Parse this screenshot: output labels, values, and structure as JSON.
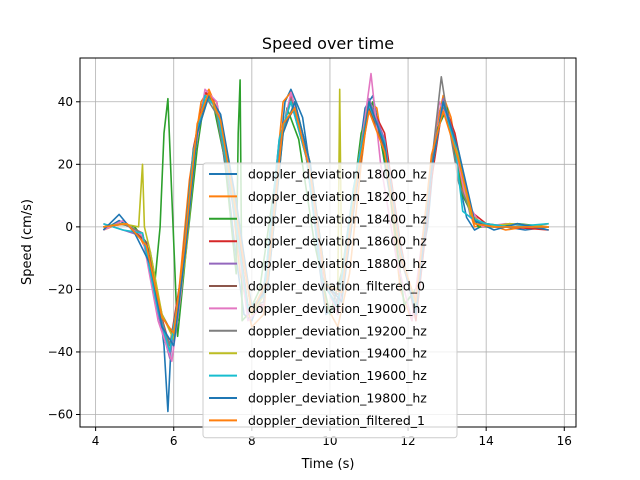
{
  "chart_data": {
    "type": "line",
    "title": "Speed over time",
    "xlabel": "Time (s)",
    "ylabel": "Speed (cm/s)",
    "xlim": [
      3.6,
      16.3
    ],
    "ylim": [
      -64,
      54
    ],
    "xticks": [
      4,
      6,
      8,
      10,
      12,
      14,
      16
    ],
    "yticks": [
      -60,
      -40,
      -20,
      0,
      20,
      40
    ],
    "xtick_labels": [
      "4",
      "6",
      "8",
      "10",
      "12",
      "14",
      "16"
    ],
    "ytick_labels": [
      "−60",
      "−40",
      "−20",
      "0",
      "20",
      "40"
    ],
    "grid": true,
    "legend_position": "center",
    "series": [
      {
        "name": "doppler_deviation_18000_hz",
        "color": "#1f77b4",
        "x": [
          4.2,
          4.6,
          5.0,
          5.4,
          5.6,
          5.75,
          5.85,
          5.95,
          6.1,
          6.3,
          6.5,
          6.7,
          6.85,
          7.0,
          7.2,
          7.4,
          7.6,
          7.8,
          8.0,
          8.3,
          8.6,
          8.85,
          9.0,
          9.3,
          9.5,
          9.7,
          9.9,
          10.1,
          10.3,
          10.6,
          10.9,
          11.1,
          11.3,
          11.6,
          11.9,
          12.2,
          12.5,
          12.75,
          12.9,
          13.1,
          13.3,
          13.5,
          13.7,
          14.0,
          14.5,
          15.0,
          15.6
        ],
        "y": [
          -1,
          2,
          -1,
          -8,
          -22,
          -38,
          -59,
          -33,
          -30,
          -5,
          20,
          38,
          43,
          40,
          30,
          12,
          -10,
          -28,
          -30,
          -20,
          10,
          40,
          44,
          35,
          18,
          -10,
          -28,
          -26,
          -20,
          10,
          38,
          42,
          28,
          5,
          -25,
          -20,
          0,
          35,
          40,
          30,
          15,
          3,
          -1,
          1,
          0,
          -1,
          0
        ]
      },
      {
        "name": "doppler_deviation_18200_hz",
        "color": "#ff7f0e",
        "x": [
          4.2,
          4.6,
          5.0,
          5.4,
          5.7,
          5.9,
          6.1,
          6.4,
          6.7,
          6.9,
          7.1,
          7.4,
          7.7,
          8.0,
          8.3,
          8.6,
          8.8,
          9.0,
          9.3,
          9.6,
          9.9,
          10.2,
          10.5,
          10.8,
          11.0,
          11.2,
          11.5,
          11.8,
          12.1,
          12.4,
          12.7,
          12.9,
          13.1,
          13.4,
          13.7,
          14.0,
          14.5,
          15.0,
          15.6
        ],
        "y": [
          -1,
          1,
          0,
          -10,
          -30,
          -40,
          -25,
          15,
          40,
          44,
          38,
          20,
          -15,
          -32,
          -28,
          15,
          40,
          43,
          30,
          5,
          -25,
          -32,
          -15,
          20,
          40,
          38,
          15,
          -20,
          -30,
          -5,
          30,
          42,
          35,
          12,
          0,
          1,
          -1,
          0,
          1
        ]
      },
      {
        "name": "doppler_deviation_18400_hz",
        "color": "#2ca02c",
        "x": [
          4.2,
          4.6,
          5.0,
          5.3,
          5.5,
          5.65,
          5.75,
          5.85,
          5.95,
          6.1,
          6.3,
          6.6,
          6.8,
          7.0,
          7.3,
          7.6,
          7.65,
          7.7,
          7.75,
          7.9,
          8.2,
          8.6,
          8.9,
          9.2,
          9.6,
          10.0,
          10.4,
          10.8,
          11.1,
          11.5,
          11.9,
          12.3,
          12.7,
          13.0,
          13.4,
          13.8,
          14.2,
          14.8,
          15.6
        ],
        "y": [
          0,
          1,
          0,
          -5,
          -20,
          0,
          30,
          41,
          10,
          -35,
          -10,
          25,
          42,
          40,
          22,
          -15,
          30,
          47,
          -30,
          -28,
          -20,
          15,
          38,
          28,
          -5,
          -28,
          -10,
          30,
          40,
          15,
          -25,
          -18,
          30,
          38,
          10,
          0,
          0,
          1,
          0
        ]
      },
      {
        "name": "doppler_deviation_18600_hz",
        "color": "#d62728",
        "x": [
          4.2,
          4.7,
          5.2,
          5.6,
          5.9,
          6.2,
          6.5,
          6.8,
          7.1,
          7.5,
          7.9,
          8.3,
          8.7,
          9.0,
          9.4,
          9.8,
          10.2,
          10.6,
          11.0,
          11.4,
          11.8,
          12.2,
          12.6,
          12.9,
          13.2,
          13.6,
          14.0,
          14.6,
          15.6
        ],
        "y": [
          0,
          1,
          -2,
          -25,
          -38,
          -15,
          25,
          43,
          40,
          12,
          -25,
          -25,
          25,
          42,
          25,
          -15,
          -28,
          5,
          40,
          30,
          -5,
          -30,
          15,
          40,
          30,
          5,
          1,
          0,
          -1
        ]
      },
      {
        "name": "doppler_deviation_18800_hz",
        "color": "#9467bd",
        "x": [
          4.2,
          4.7,
          5.2,
          5.6,
          5.9,
          6.2,
          6.5,
          6.8,
          7.1,
          7.5,
          7.9,
          8.3,
          8.7,
          9.0,
          9.4,
          9.8,
          10.2,
          10.6,
          11.0,
          11.4,
          11.8,
          12.2,
          12.6,
          12.9,
          13.2,
          13.6,
          14.0,
          14.6,
          15.6
        ],
        "y": [
          1,
          -1,
          -3,
          -28,
          -42,
          -18,
          22,
          42,
          38,
          10,
          -28,
          -22,
          28,
          40,
          22,
          -18,
          -25,
          8,
          41,
          28,
          -8,
          -28,
          18,
          41,
          28,
          3,
          0,
          1,
          0
        ]
      },
      {
        "name": "doppler_deviation_filtered_0",
        "color": "#8c564b",
        "x": [
          4.2,
          4.8,
          5.3,
          5.7,
          6.0,
          6.3,
          6.6,
          6.9,
          7.2,
          7.6,
          8.0,
          8.4,
          8.8,
          9.1,
          9.5,
          9.9,
          10.3,
          10.7,
          11.0,
          11.4,
          11.8,
          12.2,
          12.6,
          12.9,
          13.3,
          13.7,
          14.2,
          14.8,
          15.6
        ],
        "y": [
          0,
          1,
          -5,
          -28,
          -35,
          -5,
          32,
          42,
          35,
          5,
          -28,
          -18,
          32,
          38,
          18,
          -20,
          -22,
          15,
          38,
          25,
          -10,
          -25,
          22,
          38,
          22,
          1,
          0,
          0,
          0
        ]
      },
      {
        "name": "doppler_deviation_19000_hz",
        "color": "#e377c2",
        "x": [
          4.2,
          4.7,
          5.2,
          5.6,
          5.95,
          6.2,
          6.5,
          6.8,
          7.1,
          7.5,
          7.9,
          8.3,
          8.7,
          9.0,
          9.4,
          9.8,
          10.2,
          10.6,
          10.9,
          11.05,
          11.3,
          11.7,
          12.1,
          12.5,
          12.8,
          13.1,
          13.5,
          13.9,
          14.5,
          15.6
        ],
        "y": [
          -1,
          2,
          -3,
          -30,
          -43,
          -20,
          20,
          44,
          40,
          10,
          -30,
          -25,
          25,
          43,
          25,
          -15,
          -28,
          10,
          35,
          49,
          20,
          -10,
          -30,
          10,
          40,
          32,
          8,
          0,
          1,
          0
        ]
      },
      {
        "name": "doppler_deviation_19200_hz",
        "color": "#7f7f7f",
        "x": [
          4.2,
          4.7,
          5.2,
          5.6,
          5.9,
          6.2,
          6.5,
          6.8,
          7.1,
          7.5,
          7.9,
          8.3,
          8.7,
          9.0,
          9.4,
          9.8,
          10.2,
          10.6,
          11.0,
          11.4,
          11.8,
          12.2,
          12.6,
          12.85,
          13.0,
          13.3,
          13.7,
          14.2,
          15.6
        ],
        "y": [
          0,
          1,
          -2,
          -26,
          -38,
          -18,
          24,
          42,
          36,
          8,
          -26,
          -24,
          26,
          41,
          22,
          -16,
          -24,
          12,
          40,
          26,
          -8,
          -26,
          20,
          48,
          36,
          14,
          2,
          0,
          0
        ]
      },
      {
        "name": "doppler_deviation_19400_hz",
        "color": "#bcbd22",
        "x": [
          4.2,
          4.7,
          5.1,
          5.2,
          5.25,
          5.4,
          5.7,
          6.0,
          6.3,
          6.6,
          6.9,
          7.2,
          7.6,
          8.0,
          8.4,
          8.8,
          9.1,
          9.5,
          9.9,
          10.2,
          10.25,
          10.3,
          10.6,
          11.0,
          11.4,
          11.8,
          12.2,
          12.6,
          12.9,
          13.2,
          13.6,
          14.0,
          14.6,
          15.6
        ],
        "y": [
          0,
          1,
          0,
          20,
          0,
          -8,
          -28,
          -36,
          -10,
          30,
          42,
          34,
          6,
          -28,
          -20,
          30,
          40,
          20,
          -18,
          -20,
          44,
          -15,
          10,
          40,
          26,
          -8,
          -26,
          18,
          40,
          28,
          4,
          0,
          1,
          0
        ]
      },
      {
        "name": "doppler_deviation_19600_hz",
        "color": "#17becf",
        "x": [
          4.2,
          4.7,
          5.2,
          5.6,
          5.9,
          6.2,
          6.5,
          6.8,
          7.1,
          7.5,
          7.9,
          8.3,
          8.7,
          9.0,
          9.4,
          9.8,
          10.2,
          10.6,
          11.0,
          11.4,
          11.8,
          12.2,
          12.6,
          12.9,
          13.2,
          13.4,
          13.6,
          14.0,
          14.6,
          15.6
        ],
        "y": [
          1,
          -1,
          -2,
          -27,
          -40,
          -16,
          24,
          42,
          38,
          10,
          -26,
          -22,
          28,
          40,
          22,
          -17,
          -26,
          12,
          39,
          27,
          -7,
          -27,
          18,
          40,
          26,
          5,
          3,
          1,
          0,
          1
        ]
      },
      {
        "name": "doppler_deviation_19800_hz",
        "color": "#1f77b4",
        "x": [
          4.2,
          4.6,
          5.0,
          5.4,
          5.7,
          6.0,
          6.3,
          6.6,
          6.9,
          7.2,
          7.6,
          8.0,
          8.4,
          8.8,
          9.1,
          9.5,
          9.9,
          10.3,
          10.7,
          11.0,
          11.4,
          11.8,
          12.2,
          12.6,
          12.9,
          13.3,
          13.7,
          14.2,
          14.8,
          15.6
        ],
        "y": [
          -1,
          4,
          -2,
          -12,
          -32,
          -38,
          -8,
          30,
          42,
          36,
          8,
          -26,
          -20,
          30,
          40,
          20,
          -18,
          -24,
          14,
          40,
          26,
          -8,
          -28,
          18,
          40,
          24,
          2,
          -1,
          1,
          -1
        ]
      },
      {
        "name": "doppler_deviation_filtered_1",
        "color": "#ff7f0e",
        "x": [
          4.2,
          4.8,
          5.3,
          5.7,
          6.0,
          6.3,
          6.6,
          6.9,
          7.2,
          7.6,
          8.0,
          8.4,
          8.8,
          9.1,
          9.5,
          9.9,
          10.3,
          10.7,
          11.0,
          11.4,
          11.8,
          12.2,
          12.6,
          12.9,
          13.3,
          13.7,
          14.2,
          14.8,
          15.6
        ],
        "y": [
          0,
          1,
          -6,
          -29,
          -34,
          -4,
          33,
          43,
          34,
          4,
          -27,
          -17,
          33,
          38,
          17,
          -19,
          -21,
          16,
          37,
          24,
          -9,
          -24,
          23,
          37,
          21,
          1,
          0,
          0,
          0
        ]
      }
    ]
  }
}
